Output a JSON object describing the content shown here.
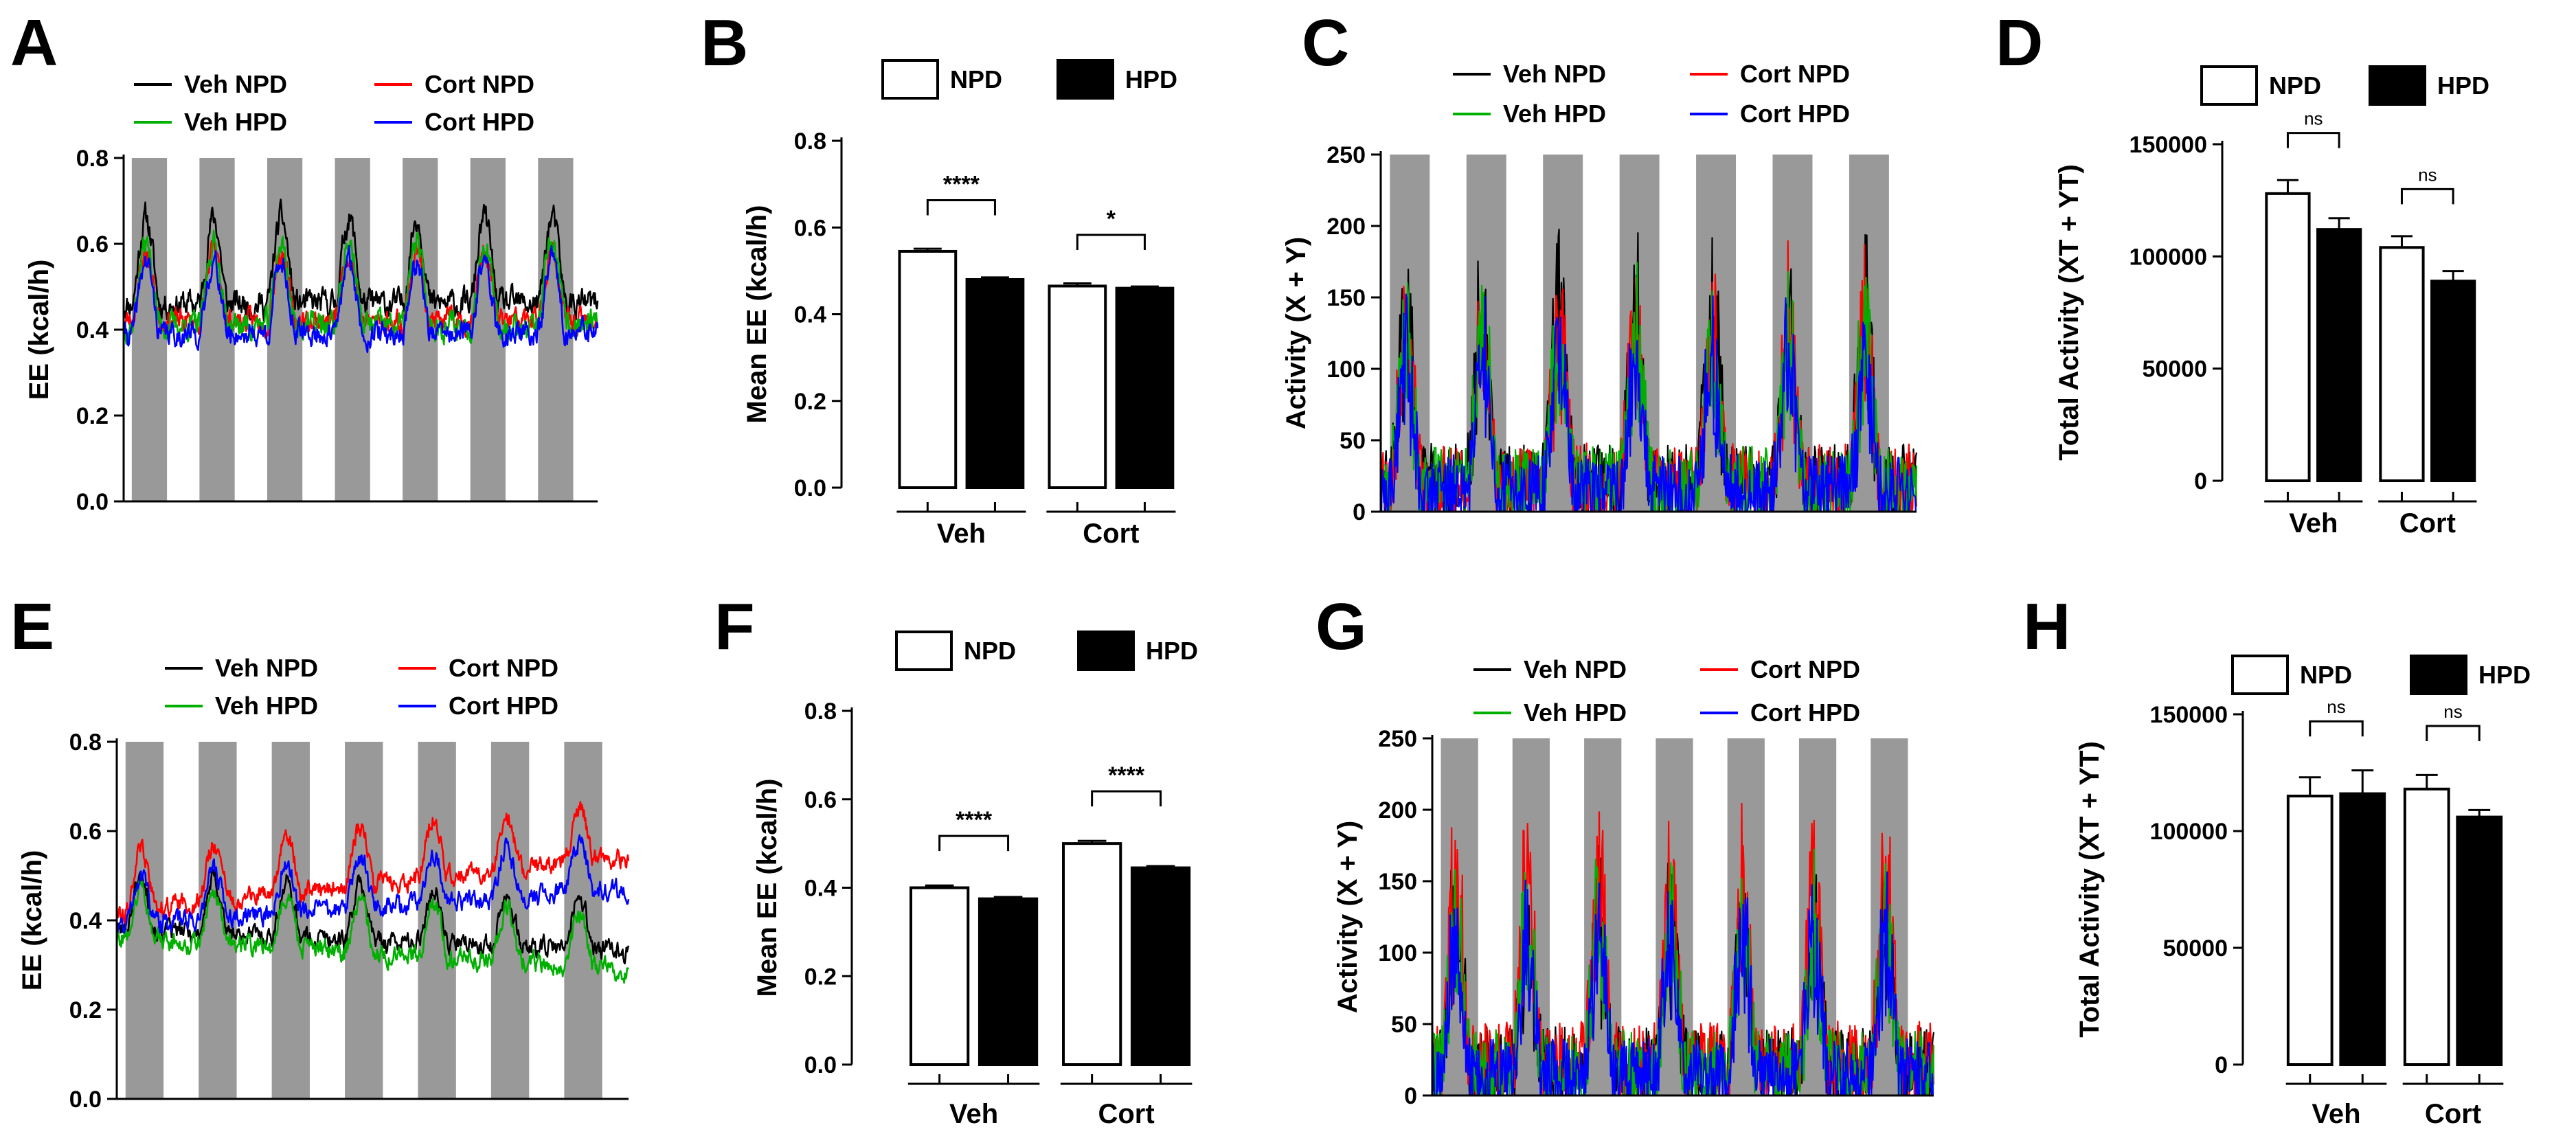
{
  "colors": {
    "veh_npd": "#000000",
    "cort_npd": "#ff0000",
    "veh_hpd": "#00b000",
    "cort_hpd": "#0000ff",
    "dark_band": "#999999",
    "npd_bar": "#ffffff",
    "hpd_bar": "#000000"
  },
  "chart_data": [
    {
      "id": "A",
      "type": "line",
      "letter": "A",
      "ylabel": "EE (kcal/h)",
      "ylim": [
        0,
        0.8
      ],
      "yticks": [
        "0.0",
        "0.2",
        "0.4",
        "0.6",
        "0.8"
      ],
      "dark_bands": 7,
      "legend": [
        {
          "name": "Veh NPD",
          "color": "#000000"
        },
        {
          "name": "Cort NPD",
          "color": "#ff0000"
        },
        {
          "name": "Veh HPD",
          "color": "#00b000"
        },
        {
          "name": "Cort HPD",
          "color": "#0000ff"
        }
      ],
      "series": [
        {
          "name": "Veh NPD",
          "color": "#000000",
          "base": 0.46,
          "peak": 0.66,
          "trend": 0.0,
          "noise": 0.025,
          "seed": 11
        },
        {
          "name": "Cort NPD",
          "color": "#ff0000",
          "base": 0.42,
          "peak": 0.58,
          "trend": 0.0,
          "noise": 0.022,
          "seed": 23
        },
        {
          "name": "Veh HPD",
          "color": "#00b000",
          "base": 0.41,
          "peak": 0.6,
          "trend": 0.0,
          "noise": 0.025,
          "seed": 37
        },
        {
          "name": "Cort HPD",
          "color": "#0000ff",
          "base": 0.39,
          "peak": 0.56,
          "trend": 0.0,
          "noise": 0.022,
          "seed": 41
        }
      ]
    },
    {
      "id": "B",
      "type": "bar",
      "letter": "B",
      "ylabel": "Mean EE (kcal/h)",
      "ylim": [
        0,
        0.8
      ],
      "yticks": [
        "0.0",
        "0.2",
        "0.4",
        "0.6",
        "0.8"
      ],
      "legend": [
        {
          "name": "NPD",
          "fill": "#ffffff"
        },
        {
          "name": "HPD",
          "fill": "#000000"
        }
      ],
      "groups": [
        "Veh",
        "Cort"
      ],
      "series": [
        {
          "name": "NPD",
          "values": [
            0.545,
            0.465
          ],
          "errors": [
            0.006,
            0.006
          ]
        },
        {
          "name": "HPD",
          "values": [
            0.48,
            0.46
          ],
          "errors": [
            0.005,
            0.004
          ]
        }
      ],
      "significance": [
        "****",
        "*"
      ]
    },
    {
      "id": "C",
      "type": "line",
      "letter": "C",
      "ylabel": "Activity (X + Y)",
      "ylim": [
        0,
        250
      ],
      "yticks": [
        "0",
        "50",
        "100",
        "150",
        "200",
        "250"
      ],
      "dark_bands": 7,
      "legend": [
        {
          "name": "Veh NPD",
          "color": "#000000"
        },
        {
          "name": "Cort NPD",
          "color": "#ff0000"
        },
        {
          "name": "Veh HPD",
          "color": "#00b000"
        },
        {
          "name": "Cort HPD",
          "color": "#0000ff"
        }
      ],
      "series": [
        {
          "name": "Veh NPD",
          "color": "#000000",
          "base": 20,
          "peak": 130,
          "trend": 0,
          "noise": 28,
          "seed": 51
        },
        {
          "name": "Cort NPD",
          "color": "#ff0000",
          "base": 20,
          "peak": 120,
          "trend": 0,
          "noise": 28,
          "seed": 63
        },
        {
          "name": "Veh HPD",
          "color": "#00b000",
          "base": 18,
          "peak": 115,
          "trend": 0,
          "noise": 28,
          "seed": 77
        },
        {
          "name": "Cort HPD",
          "color": "#0000ff",
          "base": 15,
          "peak": 100,
          "trend": 0,
          "noise": 25,
          "seed": 89
        }
      ]
    },
    {
      "id": "D",
      "type": "bar",
      "letter": "D",
      "ylabel": "Total Activity (XT + YT)",
      "ylim": [
        0,
        150000
      ],
      "yticks": [
        "0",
        "50000",
        "100000",
        "150000"
      ],
      "legend": [
        {
          "name": "NPD",
          "fill": "#ffffff"
        },
        {
          "name": "HPD",
          "fill": "#000000"
        }
      ],
      "groups": [
        "Veh",
        "Cort"
      ],
      "series": [
        {
          "name": "NPD",
          "values": [
            128000,
            104000
          ],
          "errors": [
            6000,
            5000
          ]
        },
        {
          "name": "HPD",
          "values": [
            112000,
            89000
          ],
          "errors": [
            5000,
            4500
          ]
        }
      ],
      "significance": [
        "ns",
        "ns"
      ]
    },
    {
      "id": "E",
      "type": "line",
      "letter": "E",
      "ylabel": "EE (kcal/h)",
      "ylim": [
        0,
        0.8
      ],
      "yticks": [
        "0.0",
        "0.2",
        "0.4",
        "0.6",
        "0.8"
      ],
      "dark_bands": 7,
      "legend": [
        {
          "name": "Veh NPD",
          "color": "#000000"
        },
        {
          "name": "Cort NPD",
          "color": "#ff0000"
        },
        {
          "name": "Veh HPD",
          "color": "#00b000"
        },
        {
          "name": "Cort HPD",
          "color": "#0000ff"
        }
      ],
      "series": [
        {
          "name": "Veh NPD",
          "color": "#000000",
          "base": 0.38,
          "peak": 0.5,
          "trend": -0.05,
          "noise": 0.018,
          "seed": 101
        },
        {
          "name": "Cort NPD",
          "color": "#ff0000",
          "base": 0.42,
          "peak": 0.55,
          "trend": 0.12,
          "noise": 0.018,
          "seed": 113
        },
        {
          "name": "Veh HPD",
          "color": "#00b000",
          "base": 0.36,
          "peak": 0.48,
          "trend": -0.07,
          "noise": 0.018,
          "seed": 127
        },
        {
          "name": "Cort HPD",
          "color": "#0000ff",
          "base": 0.39,
          "peak": 0.5,
          "trend": 0.08,
          "noise": 0.018,
          "seed": 131
        }
      ]
    },
    {
      "id": "F",
      "type": "bar",
      "letter": "F",
      "ylabel": "Mean EE (kcal/h)",
      "ylim": [
        0,
        0.8
      ],
      "yticks": [
        "0.0",
        "0.2",
        "0.4",
        "0.6",
        "0.8"
      ],
      "legend": [
        {
          "name": "NPD",
          "fill": "#ffffff"
        },
        {
          "name": "HPD",
          "fill": "#000000"
        }
      ],
      "groups": [
        "Veh",
        "Cort"
      ],
      "series": [
        {
          "name": "NPD",
          "values": [
            0.4,
            0.5
          ],
          "errors": [
            0.005,
            0.006
          ]
        },
        {
          "name": "HPD",
          "values": [
            0.375,
            0.445
          ],
          "errors": [
            0.004,
            0.004
          ]
        }
      ],
      "significance": [
        "****",
        "****"
      ]
    },
    {
      "id": "G",
      "type": "line",
      "letter": "G",
      "ylabel": "Activity (X + Y)",
      "ylim": [
        0,
        250
      ],
      "yticks": [
        "0",
        "50",
        "100",
        "150",
        "200",
        "250"
      ],
      "dark_bands": 7,
      "legend": [
        {
          "name": "Veh NPD",
          "color": "#000000"
        },
        {
          "name": "Cort NPD",
          "color": "#ff0000"
        },
        {
          "name": "Veh HPD",
          "color": "#00b000"
        },
        {
          "name": "Cort HPD",
          "color": "#0000ff"
        }
      ],
      "series": [
        {
          "name": "Veh NPD",
          "color": "#000000",
          "base": 20,
          "peak": 120,
          "trend": 0,
          "noise": 28,
          "seed": 151
        },
        {
          "name": "Cort NPD",
          "color": "#ff0000",
          "base": 22,
          "peak": 140,
          "trend": 0,
          "noise": 30,
          "seed": 163
        },
        {
          "name": "Veh HPD",
          "color": "#00b000",
          "base": 18,
          "peak": 115,
          "trend": 0,
          "noise": 28,
          "seed": 177
        },
        {
          "name": "Cort HPD",
          "color": "#0000ff",
          "base": 15,
          "peak": 105,
          "trend": 0,
          "noise": 25,
          "seed": 189
        }
      ]
    },
    {
      "id": "H",
      "type": "bar",
      "letter": "H",
      "ylabel": "Total Activity (XT + YT)",
      "ylim": [
        0,
        150000
      ],
      "yticks": [
        "0",
        "50000",
        "100000",
        "150000"
      ],
      "legend": [
        {
          "name": "NPD",
          "fill": "#ffffff"
        },
        {
          "name": "HPD",
          "fill": "#000000"
        }
      ],
      "groups": [
        "Veh",
        "Cort"
      ],
      "series": [
        {
          "name": "NPD",
          "values": [
            115000,
            118000
          ],
          "errors": [
            8000,
            6000
          ]
        },
        {
          "name": "HPD",
          "values": [
            116000,
            106000
          ],
          "errors": [
            10000,
            3000
          ]
        }
      ],
      "significance": [
        "ns",
        "ns"
      ]
    }
  ]
}
